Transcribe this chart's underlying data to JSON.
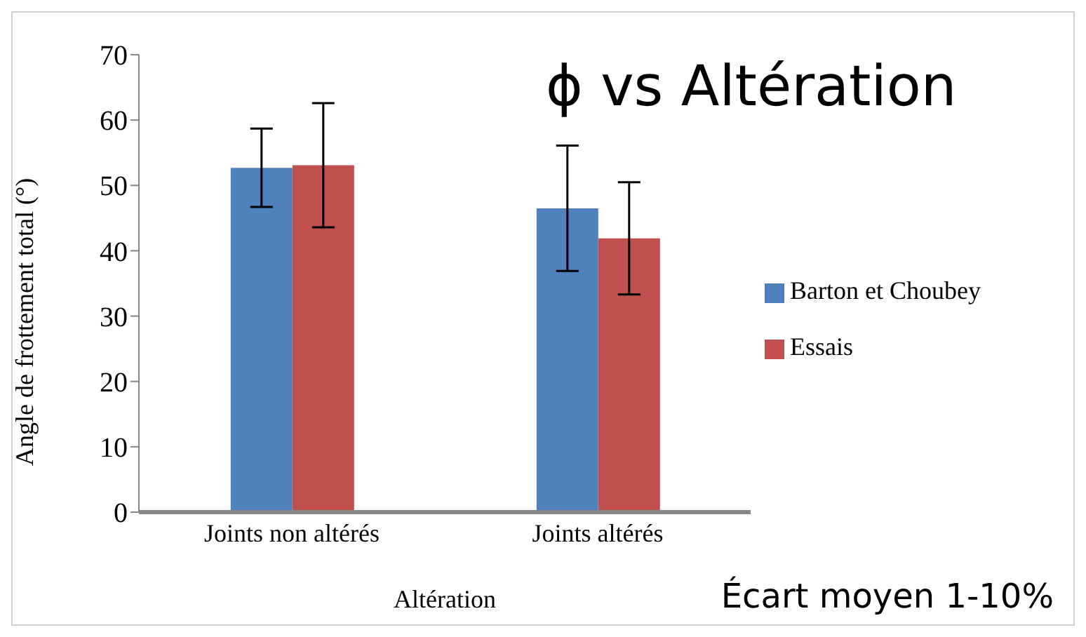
{
  "chart_data": {
    "type": "bar",
    "title": "ϕ vs Altération",
    "xlabel": "Altération",
    "ylabel": "Angle de frottement total (°)",
    "annotations": [
      "Écart moyen 1-10%"
    ],
    "categories": [
      "Joints non altérés",
      "Joints altérés"
    ],
    "series": [
      {
        "name": "Barton et Choubey",
        "color": "#4f81bd",
        "values": [
          52.7,
          46.5
        ],
        "errors": [
          6,
          9.6
        ]
      },
      {
        "name": "Essais",
        "color": "#c0504d",
        "values": [
          53.1,
          41.9
        ],
        "errors": [
          9.5,
          8.6
        ]
      }
    ],
    "ylim": [
      0,
      70
    ],
    "yticks": [
      0,
      10,
      20,
      30,
      40,
      50,
      60,
      70
    ],
    "grid": false,
    "legend": "right"
  }
}
